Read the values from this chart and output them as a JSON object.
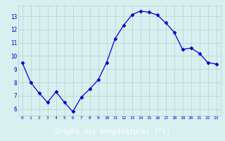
{
  "x": [
    0,
    1,
    2,
    3,
    4,
    5,
    6,
    7,
    8,
    9,
    10,
    11,
    12,
    13,
    14,
    15,
    16,
    17,
    18,
    19,
    20,
    21,
    22,
    23
  ],
  "y": [
    9.5,
    8.0,
    7.2,
    6.5,
    7.3,
    6.5,
    5.8,
    6.9,
    7.5,
    8.2,
    9.5,
    11.3,
    12.3,
    13.1,
    13.4,
    13.3,
    13.1,
    12.5,
    11.8,
    10.5,
    10.6,
    10.2,
    9.5,
    9.4
  ],
  "line_color": "#0000cc",
  "marker": "D",
  "marker_size": 2.5,
  "background_color": "#d8f0f0",
  "grid_color": "#b8d0d0",
  "xlabel": "Graphe des températures (°c)",
  "tick_color": "#0000cc",
  "label_bg_color": "#0000bb",
  "ylim": [
    5.5,
    13.8
  ],
  "xlim": [
    -0.5,
    23.5
  ],
  "yticks": [
    6,
    7,
    8,
    9,
    10,
    11,
    12,
    13
  ],
  "xticks": [
    0,
    1,
    2,
    3,
    4,
    5,
    6,
    7,
    8,
    9,
    10,
    11,
    12,
    13,
    14,
    15,
    16,
    17,
    18,
    19,
    20,
    21,
    22,
    23
  ]
}
